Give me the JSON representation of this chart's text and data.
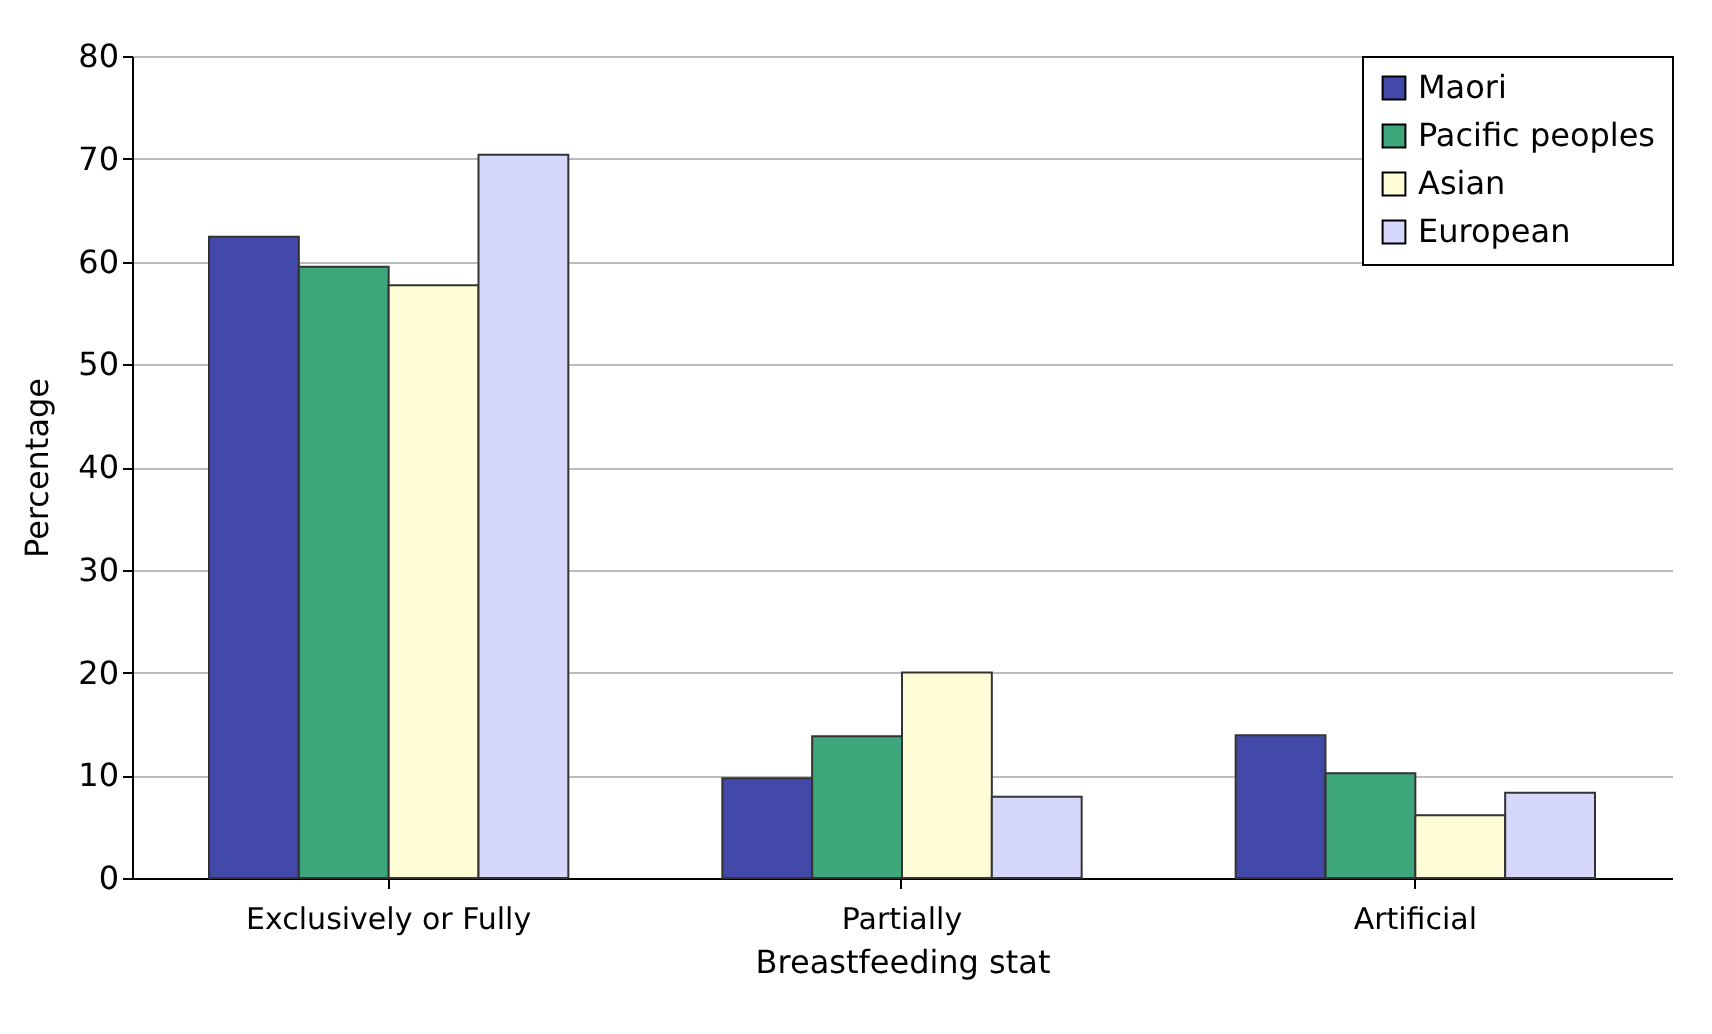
{
  "chart_data": {
    "type": "bar",
    "xlabel": "Breastfeeding stat",
    "ylabel": "Percentage",
    "categories": [
      "Exclusively or Fully",
      "Partially",
      "Artificial"
    ],
    "series": [
      {
        "name": "Maori",
        "color": "#4349a8",
        "values": [
          62.4,
          9.7,
          13.9
        ]
      },
      {
        "name": "Pacific peoples",
        "color": "#3ea67b",
        "values": [
          59.5,
          13.8,
          10.2
        ]
      },
      {
        "name": "Asian",
        "color": "#fffdd6",
        "values": [
          57.7,
          20.0,
          6.1
        ]
      },
      {
        "name": "European",
        "color": "#d5d7fb",
        "values": [
          70.4,
          7.9,
          8.3
        ]
      }
    ],
    "ylim": [
      0,
      80
    ],
    "yticks": [
      0,
      10,
      20,
      30,
      40,
      50,
      60,
      70,
      80
    ],
    "grid": "y",
    "legend": "top right"
  }
}
